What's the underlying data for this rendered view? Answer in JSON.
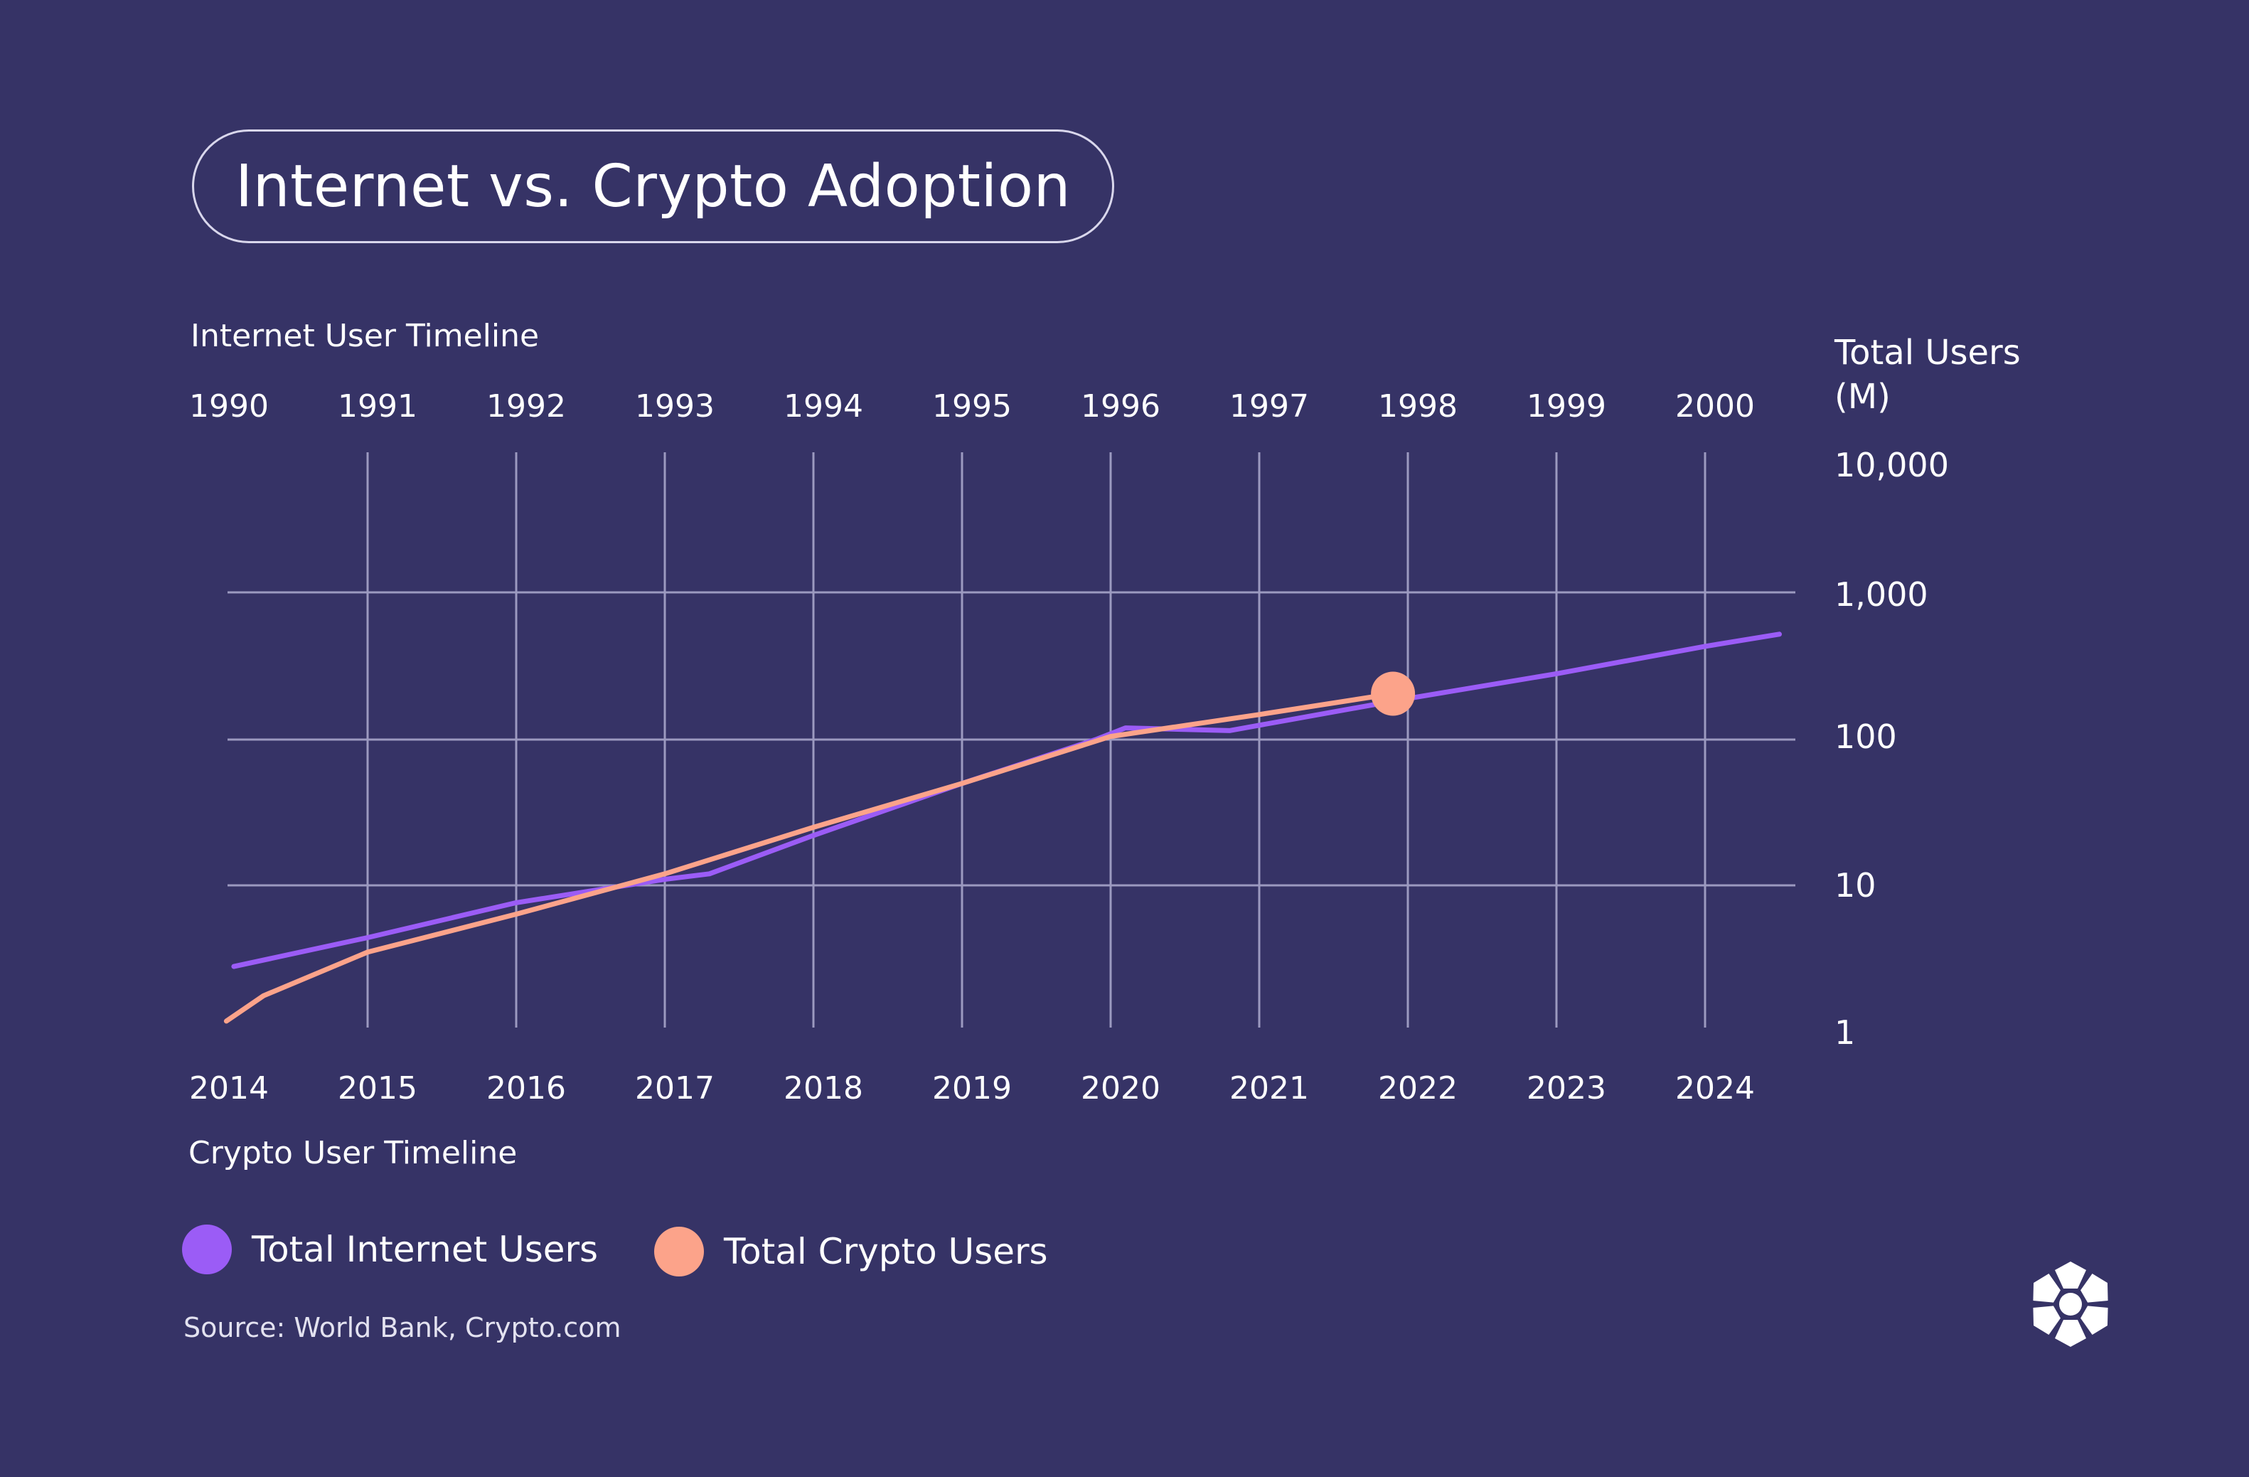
{
  "title": "Internet vs. Crypto Adoption",
  "chart_data": {
    "type": "line",
    "title": "Internet vs. Crypto Adoption",
    "top_axis_label": "Internet User Timeline",
    "bottom_axis_label": "Crypto User Timeline",
    "y_axis_label_line1": "Total Users",
    "y_axis_label_line2": "(M)",
    "y_scale": "log",
    "ylim": [
      1,
      10000
    ],
    "y_ticks": [
      {
        "value": 10000,
        "label": "10,000"
      },
      {
        "value": 1000,
        "label": "1,000"
      },
      {
        "value": 100,
        "label": "100"
      },
      {
        "value": 10,
        "label": "10"
      },
      {
        "value": 1,
        "label": "1"
      }
    ],
    "top_x_ticks": [
      "1990",
      "1991",
      "1992",
      "1993",
      "1994",
      "1995",
      "1996",
      "1997",
      "1998",
      "1999",
      "2000"
    ],
    "bottom_x_ticks": [
      "2014",
      "2015",
      "2016",
      "2017",
      "2018",
      "2019",
      "2020",
      "2021",
      "2022",
      "2023",
      "2024"
    ],
    "grid": true,
    "legend_position": "bottom-left",
    "series": [
      {
        "name": "Total Internet Users",
        "color": "#9b5cf6",
        "x_axis": "top",
        "points": [
          [
            1990.1,
            2.6
          ],
          [
            1991,
            4.2
          ],
          [
            1992,
            7.5
          ],
          [
            1993,
            11
          ],
          [
            1993.3,
            12
          ],
          [
            1994,
            22
          ],
          [
            1995,
            50
          ],
          [
            1995.9,
            100
          ],
          [
            1996.1,
            120
          ],
          [
            1996.8,
            115
          ],
          [
            1998,
            190
          ],
          [
            1999,
            280
          ],
          [
            2000,
            430
          ],
          [
            2000.5,
            520
          ]
        ]
      },
      {
        "name": "Total Crypto Users",
        "color": "#fca38a",
        "x_axis": "bottom",
        "points": [
          [
            2014.05,
            1.05
          ],
          [
            2014.3,
            1.6
          ],
          [
            2015,
            3.3
          ],
          [
            2016,
            6.2
          ],
          [
            2017,
            12
          ],
          [
            2018,
            25
          ],
          [
            2019,
            50
          ],
          [
            2020,
            105
          ],
          [
            2021,
            148
          ],
          [
            2021.9,
            205
          ]
        ],
        "end_marker": true
      }
    ]
  },
  "legend": [
    {
      "label": "Total Internet Users",
      "color": "#9b5cf6"
    },
    {
      "label": "Total Crypto Users",
      "color": "#fca38a"
    }
  ],
  "source": "Source: World Bank, Crypto.com",
  "logo_icon": "crypto-com-logo-icon"
}
